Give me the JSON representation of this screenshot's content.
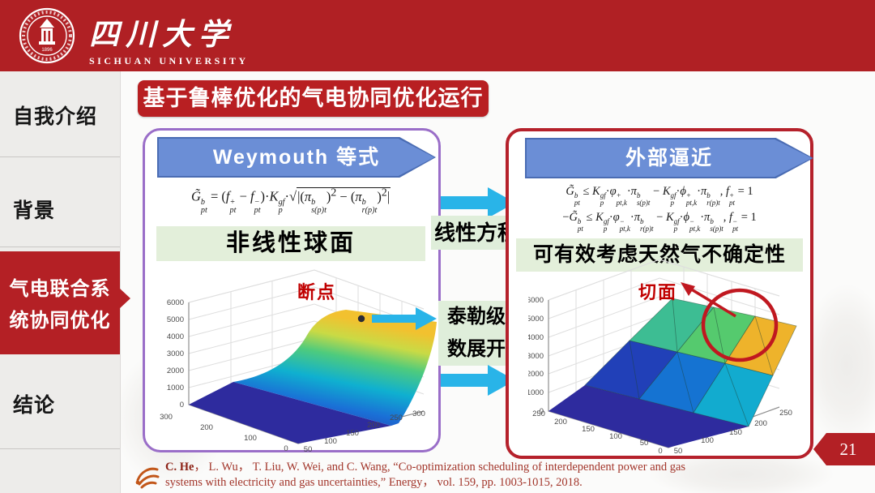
{
  "header": {
    "university_cn": "四川大学",
    "university_en": "SICHUAN UNIVERSITY",
    "seal_year": "1896"
  },
  "sidebar": {
    "items": [
      {
        "label": "自我介绍",
        "active": false
      },
      {
        "label": "背景",
        "active": false
      },
      {
        "label": "气电联合系统协同优化",
        "line1": "气电联合系",
        "line2": "统协同优化",
        "active": true
      },
      {
        "label": "结论",
        "active": false
      }
    ]
  },
  "title": "基于鲁棒优化的气电协同优化运行",
  "left_panel": {
    "banner": "Weymouth 等式",
    "formula_html": "<i>G̃</i><span class='ss'><span>b</span><span>pt</span></span> = (<i>f</i><span class='ss'><span>+</span><span>pt</span></span> − <i>f</i><span class='ss'><span>−</span><span>pt</span></span>)·<i>K</i><span class='ss'><span>gf</span><span>p</span></span>·√<span class='rad'>|(<i>π</i><span class='ss'><span>b</span><span>s(p)t</span></span>)<sup>2</sup> − (<i>π</i><span class='ss'><span>b</span><span>r(p)t</span></span>)<sup>2</sup>|</span>",
    "highlight": "非线性球面",
    "annotation": "断点"
  },
  "middle": {
    "top_arrow_label": "线性方程",
    "bottom_label_line1": "泰勒级",
    "bottom_label_line2": "数展开"
  },
  "right_panel": {
    "banner": "外部逼近",
    "formula1_html": "<i>G̃</i><span class='ss'><span>b</span><span>pt</span></span> ≤ <i>K</i><span class='ss'><span>gf</span><span>p</span></span>·<i>φ</i><span class='ss'><span>+</span><span>pt,k</span></span>·<i>π</i><span class='ss'><span>b</span><span>s(p)t</span></span> − <i>K</i><span class='ss'><span>gf</span><span>p</span></span>·<i>ϕ</i><span class='ss'><span>+</span><span>pt,k</span></span>·<i>π</i><span class='ss'><span>b</span><span>r(p)t</span></span>, <i>f</i><span class='ss'><span>+</span><span>pt</span></span> = 1",
    "formula2_html": "−<i>G̃</i><span class='ss'><span>b</span><span>pt</span></span> ≤ <i>K</i><span class='ss'><span>gf</span><span>p</span></span>·<i>φ</i><span class='ss'><span>−</span><span>pt,k</span></span>·<i>π</i><span class='ss'><span>b</span><span>r(p)t</span></span> − <i>K</i><span class='ss'><span>gf</span><span>p</span></span>·<i>ϕ</i><span class='ss'><span>−</span><span>pt,k</span></span>·<i>π</i><span class='ss'><span>b</span><span>s(p)t</span></span>, <i>f</i><span class='ss'><span>−</span><span>pt</span></span> = 1",
    "highlight": "可有效考虑天然气不确定性",
    "annotation": "切面"
  },
  "citation": {
    "line1_html": "<b>C. He</b>，  L. Wu，  T. Liu, W. Wei, and C. Wang, “Co-optimization scheduling of interdependent power and gas",
    "line2": "systems with electricity and gas uncertainties,” Energy，  vol. 159, pp. 1003-1015, 2018."
  },
  "page_number": "21",
  "chart_data": [
    {
      "type": "surface3d",
      "name": "weymouth-nonlinear-surface",
      "description": "Nonlinear Weymouth gas-flow surface: flat dark-blue region at z=0 rising smoothly to a yellow crest near z≈5800, with a breakpoint dot on the crest",
      "zlim": [
        0,
        6000
      ],
      "z_tick_labels": [
        "0",
        "1000",
        "2000",
        "3000",
        "4000",
        "5000",
        "6000"
      ],
      "left_axis_labels": [
        "300",
        "200",
        "100",
        "0"
      ],
      "right_axis_labels": [
        "50",
        "100",
        "150",
        "200",
        "250",
        "300"
      ],
      "annotation": "断点"
    },
    {
      "type": "surface3d",
      "name": "outer-approximation-surface",
      "description": "Piecewise-linear (outer approximation) faceted surface: flat dark-blue floor rising through blue/cyan/green facets to orange-yellow top facets, circled region marks the cutting planes",
      "zlim": [
        0,
        6000
      ],
      "z_tick_labels": [
        "0",
        "1000",
        "2000",
        "3000",
        "4000",
        "5000",
        "6000"
      ],
      "left_axis_labels": [
        "250",
        "200",
        "150",
        "100",
        "50",
        "0"
      ],
      "right_axis_labels": [
        "50",
        "100",
        "150",
        "200",
        "250"
      ],
      "annotation": "切面"
    }
  ],
  "colors": {
    "header_red": "#b02024",
    "active_red": "#b42025",
    "title_red": "#b81f22",
    "purple_border": "#9a6ec8",
    "red_border": "#b5212b",
    "banner_blue": "#6b8ed6",
    "cyan_arrow": "#29b4e8",
    "green_highlight": "#e3efda",
    "annotation_red": "#c00000",
    "citation_red": "#a2352a"
  }
}
